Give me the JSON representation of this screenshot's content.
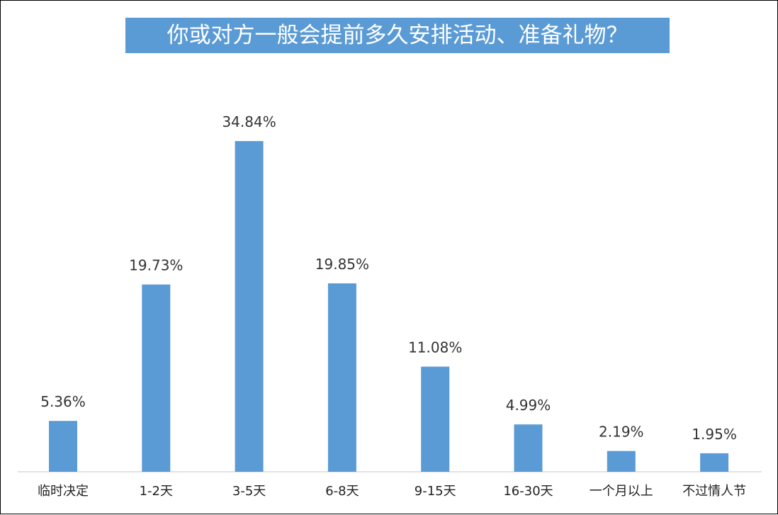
{
  "chart_data": {
    "type": "bar",
    "title": "你或对方一般会提前多久安排活动、准备礼物？",
    "categories": [
      "临时决定",
      "1-2天",
      "3-5天",
      "6-8天",
      "9-15天",
      "16-30天",
      "一个月以上",
      "不过情人节"
    ],
    "values": [
      5.36,
      19.73,
      34.84,
      19.85,
      11.08,
      4.99,
      2.19,
      1.95
    ],
    "value_labels": [
      "5.36%",
      "19.73%",
      "34.84%",
      "19.85%",
      "11.08%",
      "4.99%",
      "2.19%",
      "1.95%"
    ],
    "unit": "%",
    "xlabel": "",
    "ylabel": "",
    "grid": false,
    "legend": "none",
    "bar_color": "#5b9bd5",
    "title_background": "#5b9bd5"
  }
}
